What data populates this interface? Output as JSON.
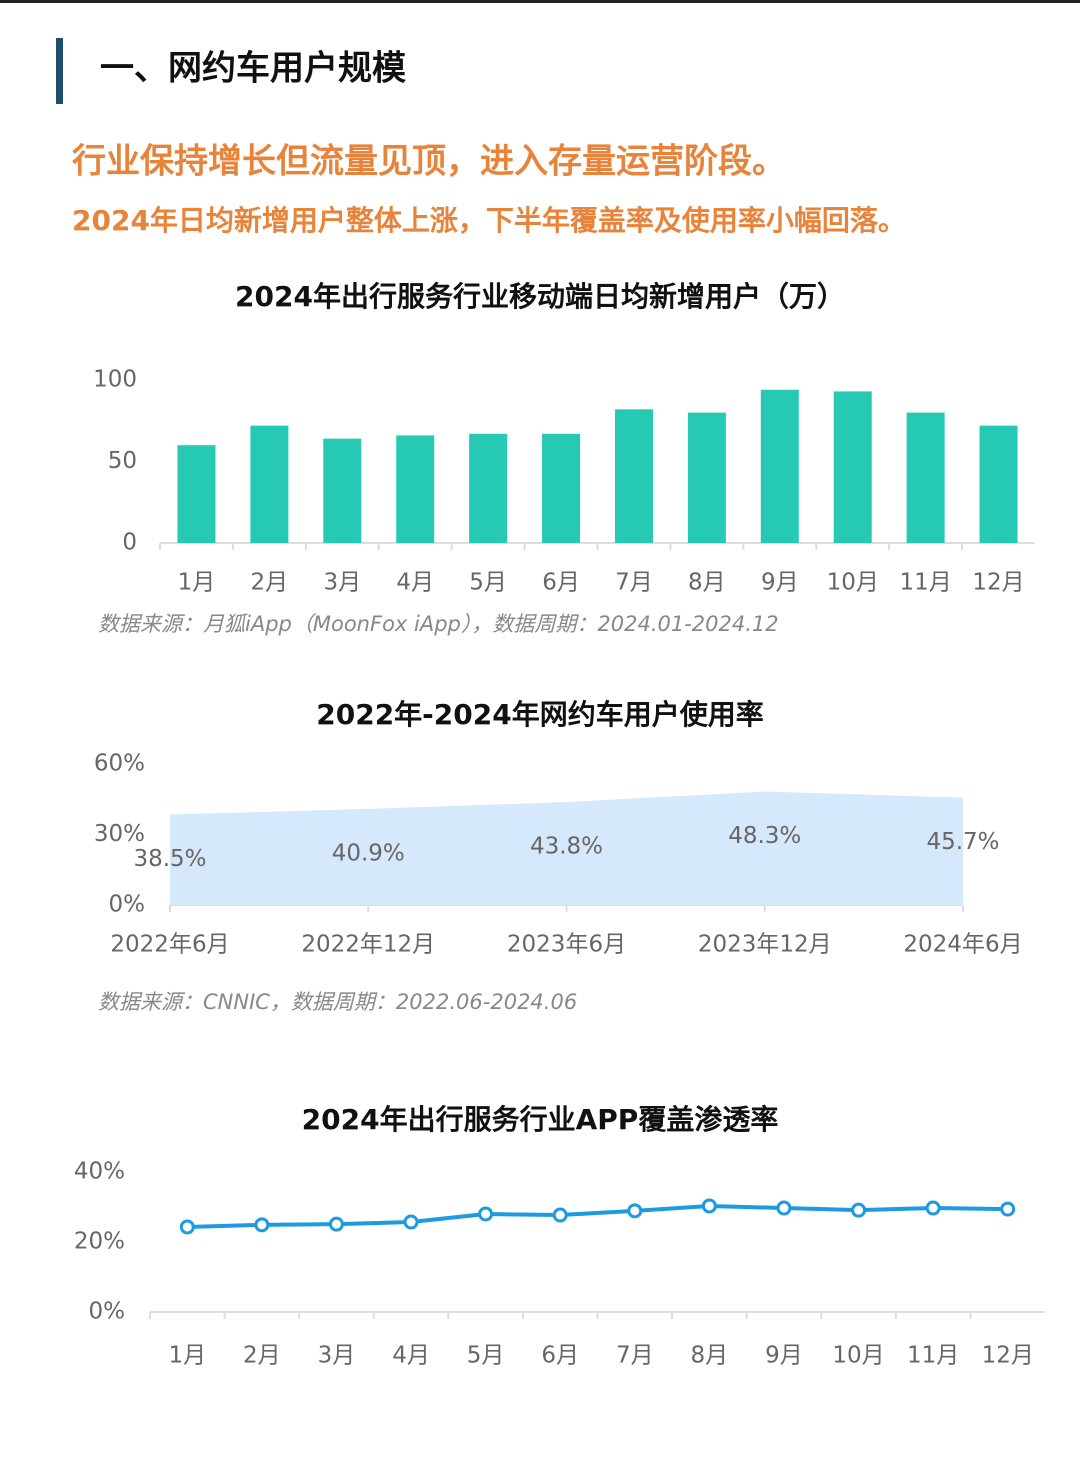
{
  "header": {
    "title": "一、网约车用户规模",
    "headline": "行业保持增长但流量见顶，进入存量运营阶段。",
    "subheadline": "2024年日均新增用户整体上涨，下半年覆盖率及使用率小幅回落。"
  },
  "chart_data": [
    {
      "type": "bar",
      "title": "2024年出行服务行业移动端日均新增用户（万）",
      "categories": [
        "1月",
        "2月",
        "3月",
        "4月",
        "5月",
        "6月",
        "7月",
        "8月",
        "9月",
        "10月",
        "11月",
        "12月"
      ],
      "values": [
        60,
        72,
        64,
        66,
        67,
        67,
        82,
        80,
        94,
        93,
        80,
        72
      ],
      "color": "#26c9b3",
      "ylim": [
        0,
        100
      ],
      "yticks": [
        0,
        50,
        100
      ],
      "source": "数据来源：月狐iApp（MoonFox iApp），数据周期：2024.01-2024.12"
    },
    {
      "type": "area",
      "title": "2022年-2024年网约车用户使用率",
      "categories": [
        "2022年6月",
        "2022年12月",
        "2023年6月",
        "2023年12月",
        "2024年6月"
      ],
      "values": [
        38.5,
        40.9,
        43.8,
        48.3,
        45.7
      ],
      "value_labels": [
        "38.5%",
        "40.9%",
        "43.8%",
        "48.3%",
        "45.7%"
      ],
      "color": "#d6e8fb",
      "ylim": [
        0,
        60
      ],
      "yticks": [
        {
          "value": 0,
          "label": "0%"
        },
        {
          "value": 30,
          "label": "30%"
        },
        {
          "value": 60,
          "label": "60%"
        }
      ],
      "source": "数据来源：CNNIC，数据周期：2022.06-2024.06"
    },
    {
      "type": "line",
      "title": "2024年出行服务行业APP覆盖渗透率",
      "categories": [
        "1月",
        "2月",
        "3月",
        "4月",
        "5月",
        "6月",
        "7月",
        "8月",
        "9月",
        "10月",
        "11月",
        "12月"
      ],
      "values": [
        24.3,
        24.9,
        25.1,
        25.7,
        28,
        27.7,
        28.9,
        30.3,
        29.7,
        29.1,
        29.7,
        29.4
      ],
      "color": "#1e9be0",
      "ylim": [
        0,
        40
      ],
      "yticks": [
        {
          "value": 0,
          "label": "0%"
        },
        {
          "value": 20,
          "label": "20%"
        },
        {
          "value": 40,
          "label": "40%"
        }
      ]
    }
  ]
}
